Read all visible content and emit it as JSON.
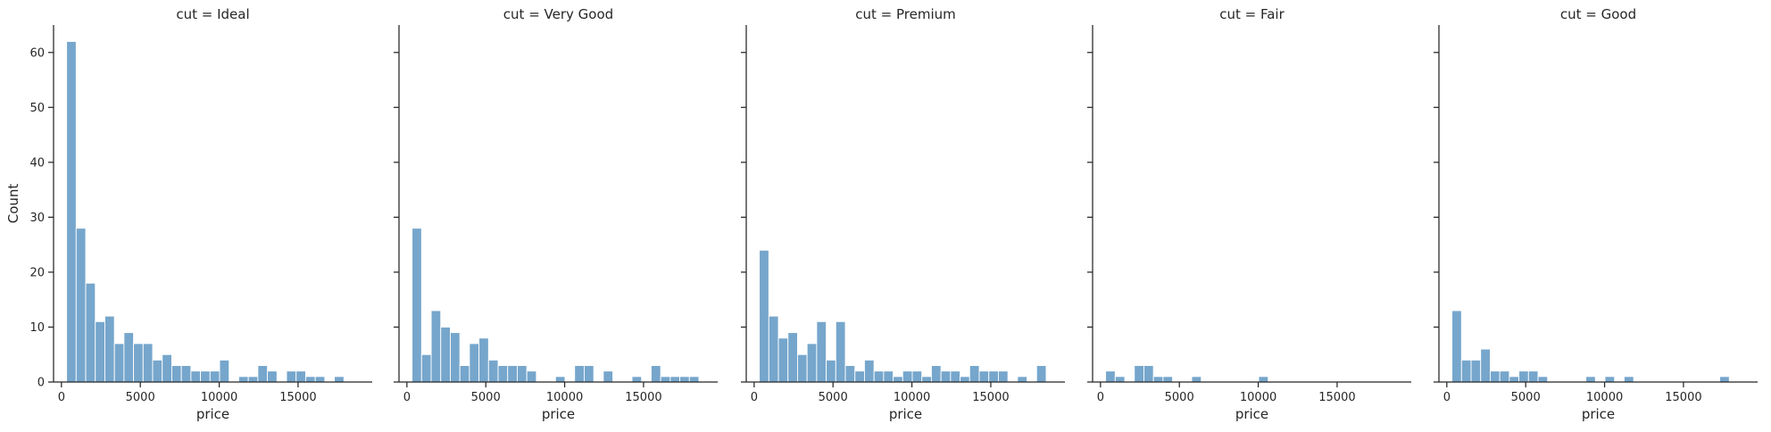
{
  "chart_data": {
    "type": "bar",
    "ylabel": "Count",
    "ylim": [
      0,
      65
    ],
    "yticks": [
      0,
      10,
      20,
      30,
      40,
      50,
      60
    ],
    "xlim": [
      -500,
      19700
    ],
    "xticks": [
      0,
      5000,
      10000,
      15000
    ],
    "bin_start": 326,
    "bin_width": 606.2,
    "bar_color": "#6a9ec8",
    "panels": [
      {
        "title": "cut = Ideal",
        "xlabel": "price",
        "counts": [
          62,
          28,
          18,
          11,
          12,
          7,
          9,
          7,
          7,
          4,
          5,
          3,
          3,
          2,
          2,
          2,
          4,
          0,
          1,
          1,
          3,
          2,
          0,
          2,
          2,
          1,
          1,
          0,
          1,
          0
        ]
      },
      {
        "title": "cut = Very Good",
        "xlabel": "price",
        "counts": [
          28,
          5,
          13,
          10,
          9,
          3,
          7,
          8,
          4,
          3,
          3,
          3,
          2,
          0,
          0,
          1,
          0,
          3,
          3,
          0,
          2,
          0,
          0,
          1,
          0,
          3,
          1,
          1,
          1,
          1
        ]
      },
      {
        "title": "cut = Premium",
        "xlabel": "price",
        "counts": [
          24,
          12,
          8,
          9,
          5,
          7,
          11,
          4,
          11,
          3,
          2,
          4,
          2,
          2,
          1,
          2,
          2,
          1,
          3,
          2,
          2,
          1,
          3,
          2,
          2,
          2,
          0,
          1,
          0,
          3
        ]
      },
      {
        "title": "cut = Fair",
        "xlabel": "price",
        "counts": [
          2,
          1,
          0,
          3,
          3,
          1,
          1,
          0,
          0,
          1,
          0,
          0,
          0,
          0,
          0,
          0,
          1,
          0,
          0,
          0,
          0,
          0,
          0,
          0,
          0,
          0,
          0,
          0,
          0,
          0
        ]
      },
      {
        "title": "cut = Good",
        "xlabel": "price",
        "counts": [
          13,
          4,
          4,
          6,
          2,
          2,
          1,
          2,
          2,
          1,
          0,
          0,
          0,
          0,
          1,
          0,
          1,
          0,
          1,
          0,
          0,
          0,
          0,
          0,
          0,
          0,
          0,
          0,
          1,
          0
        ]
      }
    ]
  }
}
